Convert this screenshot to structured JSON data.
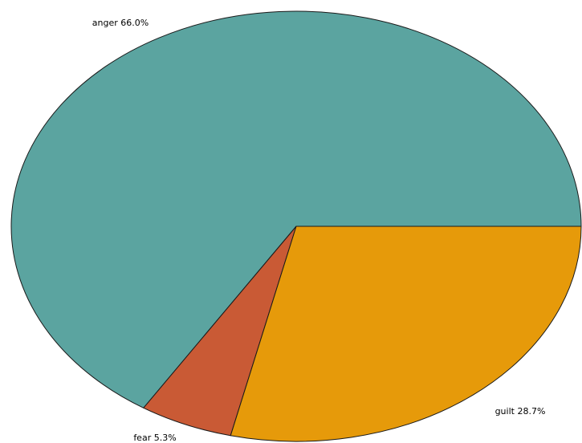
{
  "chart_data": {
    "type": "pie",
    "slices": [
      {
        "label": "anger",
        "value": 66.0,
        "text": "anger  66.0%",
        "color": "#5ba4a0"
      },
      {
        "label": "fear",
        "value": 5.3,
        "text": "fear  5.3%",
        "color": "#c95a35"
      },
      {
        "label": "guilt",
        "value": 28.7,
        "text": "guilt  28.7%",
        "color": "#e69a0a"
      }
    ],
    "start_angle_deg": 0,
    "direction": "counterclockwise",
    "legend": "none"
  }
}
